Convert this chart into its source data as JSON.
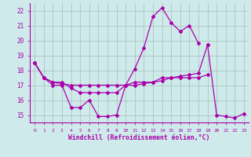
{
  "xlabel": "Windchill (Refroidissement éolien,°C)",
  "background_color": "#ceeaea",
  "line_color": "#aa00aa",
  "grid_color": "#aabbbb",
  "xlim": [
    -0.5,
    23.5
  ],
  "ylim": [
    14.5,
    22.5
  ],
  "xticks": [
    0,
    1,
    2,
    3,
    4,
    5,
    6,
    7,
    8,
    9,
    10,
    11,
    12,
    13,
    14,
    15,
    16,
    17,
    18,
    19,
    20,
    21,
    22,
    23
  ],
  "yticks": [
    15,
    16,
    17,
    18,
    19,
    20,
    21,
    22
  ],
  "series": [
    {
      "x": [
        0,
        1,
        2,
        3,
        4,
        5,
        6,
        7,
        8,
        9,
        10,
        11,
        12,
        13,
        14,
        15,
        16,
        17,
        18
      ],
      "y": [
        18.5,
        17.5,
        17.0,
        17.0,
        15.5,
        15.5,
        16.0,
        14.9,
        14.9,
        15.0,
        17.0,
        18.1,
        19.5,
        21.6,
        22.2,
        21.2,
        20.6,
        21.0,
        19.8
      ]
    },
    {
      "x": [
        0,
        1,
        2,
        3,
        4,
        5,
        6,
        7,
        8,
        9,
        10,
        11,
        12,
        13,
        14,
        15,
        16,
        17,
        18,
        19
      ],
      "y": [
        18.5,
        17.5,
        17.2,
        17.2,
        16.8,
        16.5,
        16.5,
        16.5,
        16.5,
        16.5,
        17.0,
        17.2,
        17.2,
        17.2,
        17.5,
        17.5,
        17.5,
        17.5,
        17.5,
        17.7
      ]
    },
    {
      "x": [
        0,
        1,
        2,
        3,
        4,
        5,
        6,
        7,
        8,
        9,
        10,
        11,
        12,
        13,
        14,
        15,
        16,
        17,
        18,
        19
      ],
      "y": [
        18.5,
        17.5,
        17.2,
        17.1,
        17.0,
        17.0,
        17.0,
        17.0,
        17.0,
        17.0,
        17.0,
        17.0,
        17.1,
        17.2,
        17.3,
        17.5,
        17.6,
        17.7,
        17.8,
        19.7
      ]
    },
    {
      "x": [
        19,
        20,
        21,
        22,
        23
      ],
      "y": [
        19.7,
        15.0,
        14.9,
        14.8,
        15.1
      ]
    }
  ]
}
